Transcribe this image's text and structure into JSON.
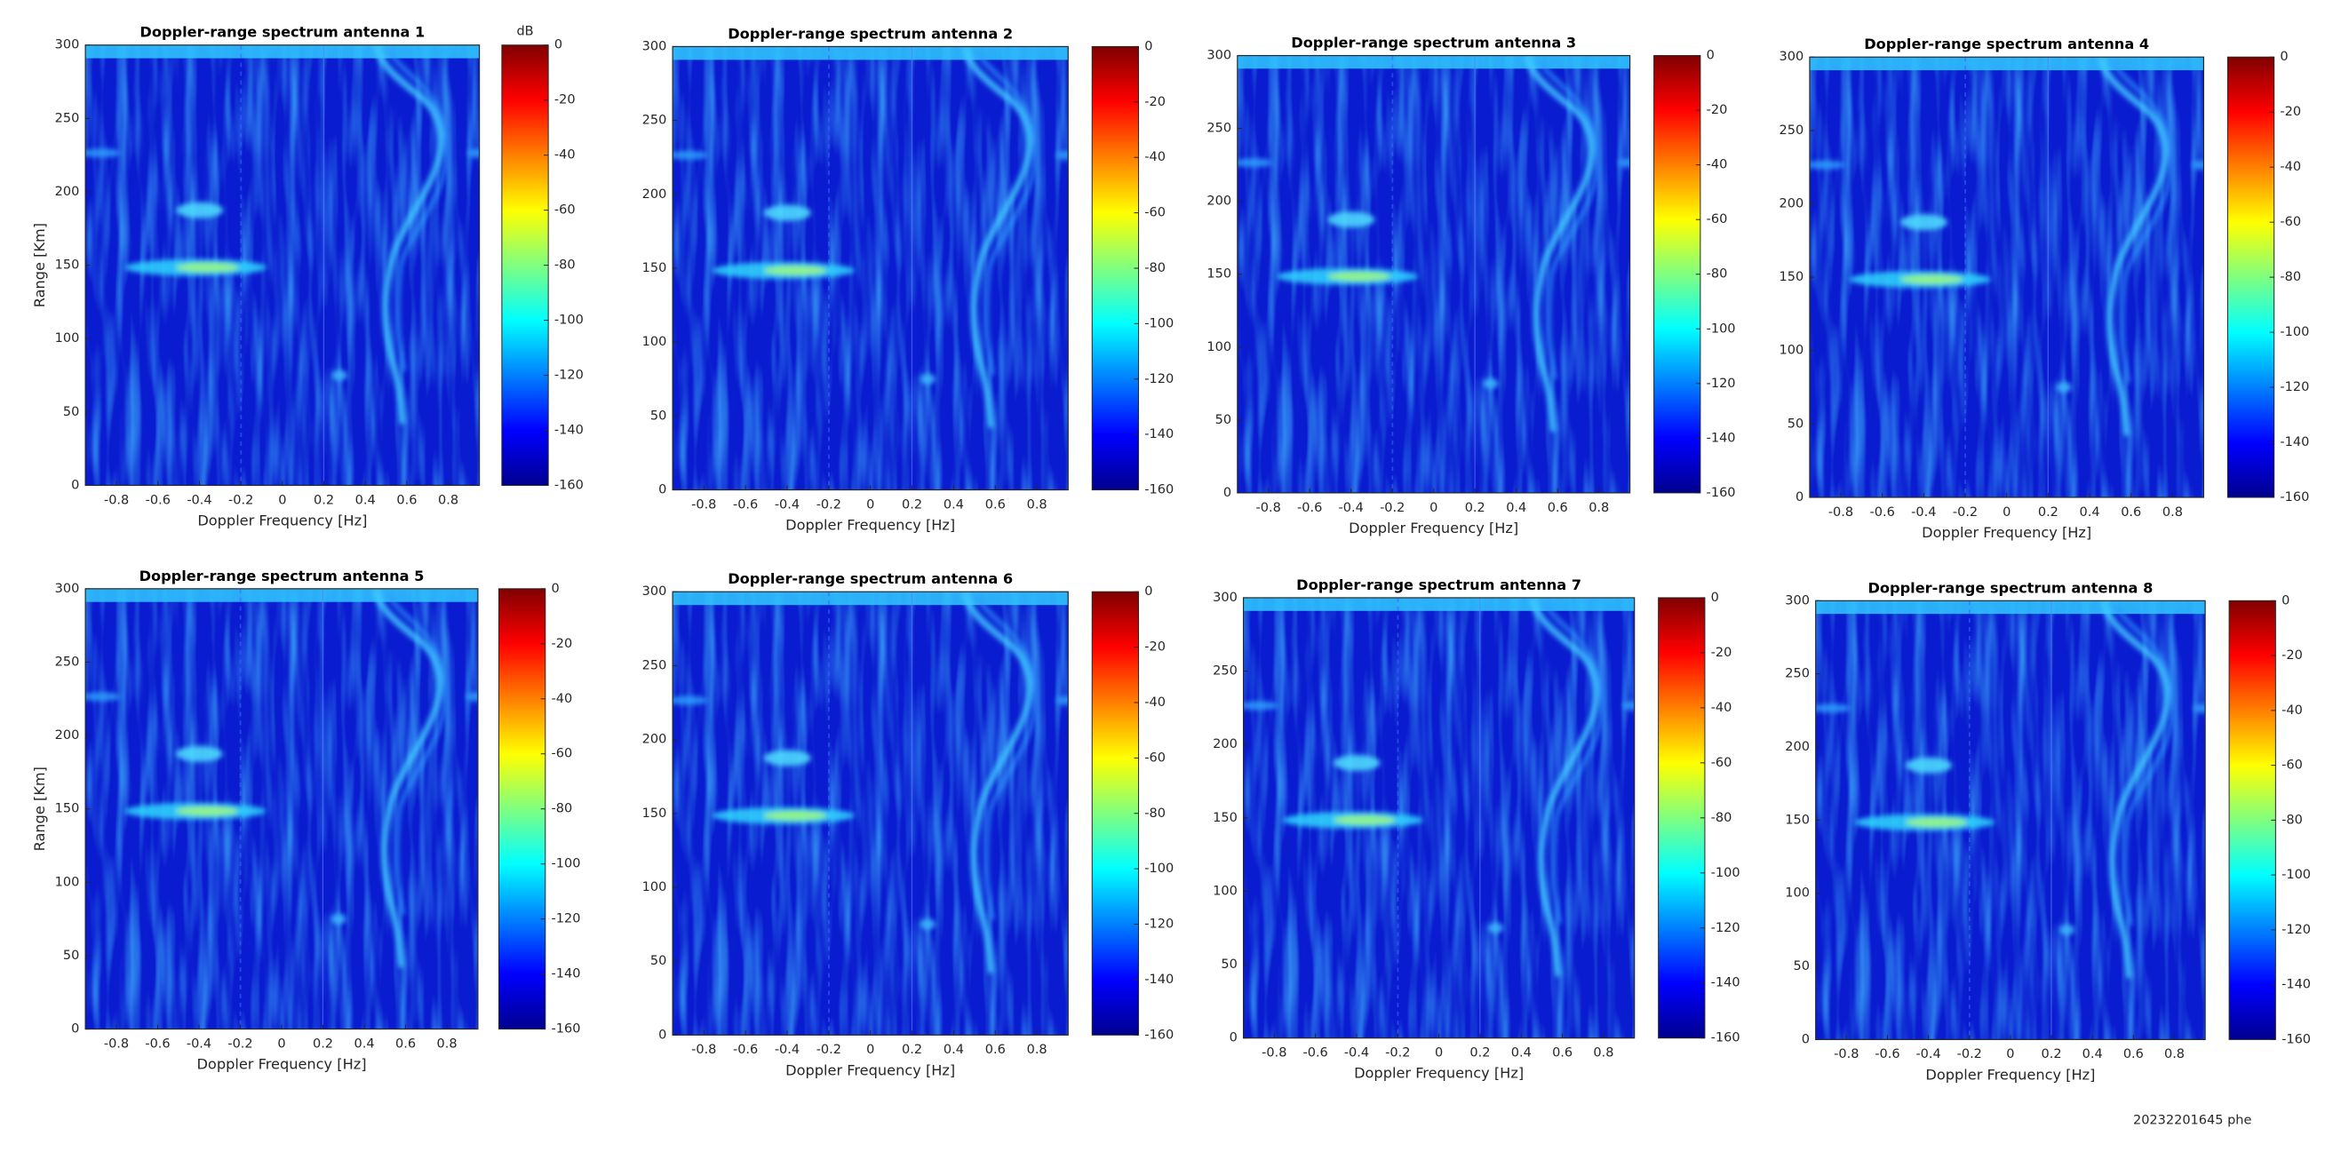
{
  "chart_data": [
    {
      "type": "heatmap",
      "title": "Doppler-range spectrum antenna 1",
      "xlabel": "Doppler Frequency [Hz]",
      "ylabel": "Range [Km]",
      "xlim": [
        -0.95,
        0.95
      ],
      "xticks": [
        -0.8,
        -0.6,
        -0.4,
        -0.2,
        0,
        0.2,
        0.4,
        0.6,
        0.8
      ],
      "ylim": [
        0,
        300
      ],
      "yticks": [
        0,
        50,
        100,
        150,
        200,
        250,
        300
      ],
      "colormap": "jet",
      "clim": [
        -160,
        0
      ],
      "cticks": [
        0,
        -20,
        -40,
        -60,
        -80,
        -100,
        -120,
        -140,
        -160
      ],
      "colorbar_label": "dB"
    },
    {
      "type": "heatmap",
      "title": "Doppler-range spectrum antenna 2",
      "xlabel": "Doppler Frequency [Hz]",
      "xlim": [
        -0.95,
        0.95
      ],
      "xticks": [
        -0.8,
        -0.6,
        -0.4,
        -0.2,
        0,
        0.2,
        0.4,
        0.6,
        0.8
      ],
      "ylim": [
        0,
        300
      ],
      "yticks": [
        0,
        50,
        100,
        150,
        200,
        250,
        300
      ],
      "colormap": "jet",
      "clim": [
        -160,
        0
      ],
      "cticks": [
        0,
        -20,
        -40,
        -60,
        -80,
        -100,
        -120,
        -140,
        -160
      ]
    },
    {
      "type": "heatmap",
      "title": "Doppler-range spectrum antenna 3",
      "xlabel": "Doppler Frequency [Hz]",
      "xlim": [
        -0.95,
        0.95
      ],
      "xticks": [
        -0.8,
        -0.6,
        -0.4,
        -0.2,
        0,
        0.2,
        0.4,
        0.6,
        0.8
      ],
      "ylim": [
        0,
        300
      ],
      "yticks": [
        0,
        50,
        100,
        150,
        200,
        250,
        300
      ],
      "colormap": "jet",
      "clim": [
        -160,
        0
      ],
      "cticks": [
        0,
        -20,
        -40,
        -60,
        -80,
        -100,
        -120,
        -140,
        -160
      ]
    },
    {
      "type": "heatmap",
      "title": "Doppler-range spectrum antenna 4",
      "xlabel": "Doppler Frequency [Hz]",
      "xlim": [
        -0.95,
        0.95
      ],
      "xticks": [
        -0.8,
        -0.6,
        -0.4,
        -0.2,
        0,
        0.2,
        0.4,
        0.6,
        0.8
      ],
      "ylim": [
        0,
        300
      ],
      "yticks": [
        0,
        50,
        100,
        150,
        200,
        250,
        300
      ],
      "colormap": "jet",
      "clim": [
        -160,
        0
      ],
      "cticks": [
        0,
        -20,
        -40,
        -60,
        -80,
        -100,
        -120,
        -140,
        -160
      ]
    },
    {
      "type": "heatmap",
      "title": "Doppler-range spectrum antenna 5",
      "xlabel": "Doppler Frequency [Hz]",
      "ylabel": "Range [Km]",
      "xlim": [
        -0.95,
        0.95
      ],
      "xticks": [
        -0.8,
        -0.6,
        -0.4,
        -0.2,
        0,
        0.2,
        0.4,
        0.6,
        0.8
      ],
      "ylim": [
        0,
        300
      ],
      "yticks": [
        0,
        50,
        100,
        150,
        200,
        250,
        300
      ],
      "colormap": "jet",
      "clim": [
        -160,
        0
      ],
      "cticks": [
        0,
        -20,
        -40,
        -60,
        -80,
        -100,
        -120,
        -140,
        -160
      ]
    },
    {
      "type": "heatmap",
      "title": "Doppler-range spectrum antenna 6",
      "xlabel": "Doppler Frequency [Hz]",
      "xlim": [
        -0.95,
        0.95
      ],
      "xticks": [
        -0.8,
        -0.6,
        -0.4,
        -0.2,
        0,
        0.2,
        0.4,
        0.6,
        0.8
      ],
      "ylim": [
        0,
        300
      ],
      "yticks": [
        0,
        50,
        100,
        150,
        200,
        250,
        300
      ],
      "colormap": "jet",
      "clim": [
        -160,
        0
      ],
      "cticks": [
        0,
        -20,
        -40,
        -60,
        -80,
        -100,
        -120,
        -140,
        -160
      ]
    },
    {
      "type": "heatmap",
      "title": "Doppler-range spectrum antenna 7",
      "xlabel": "Doppler Frequency [Hz]",
      "xlim": [
        -0.95,
        0.95
      ],
      "xticks": [
        -0.8,
        -0.6,
        -0.4,
        -0.2,
        0,
        0.2,
        0.4,
        0.6,
        0.8
      ],
      "ylim": [
        0,
        300
      ],
      "yticks": [
        0,
        50,
        100,
        150,
        200,
        250,
        300
      ],
      "colormap": "jet",
      "clim": [
        -160,
        0
      ],
      "cticks": [
        0,
        -20,
        -40,
        -60,
        -80,
        -100,
        -120,
        -140,
        -160
      ]
    },
    {
      "type": "heatmap",
      "title": "Doppler-range spectrum antenna 8",
      "xlabel": "Doppler Frequency [Hz]",
      "xlim": [
        -0.95,
        0.95
      ],
      "xticks": [
        -0.8,
        -0.6,
        -0.4,
        -0.2,
        0,
        0.2,
        0.4,
        0.6,
        0.8
      ],
      "ylim": [
        0,
        300
      ],
      "yticks": [
        0,
        50,
        100,
        150,
        200,
        250,
        300
      ],
      "colormap": "jet",
      "clim": [
        -160,
        0
      ],
      "cticks": [
        0,
        -20,
        -40,
        -60,
        -80,
        -100,
        -120,
        -140,
        -160
      ]
    }
  ],
  "footer": "20232201645 phe"
}
